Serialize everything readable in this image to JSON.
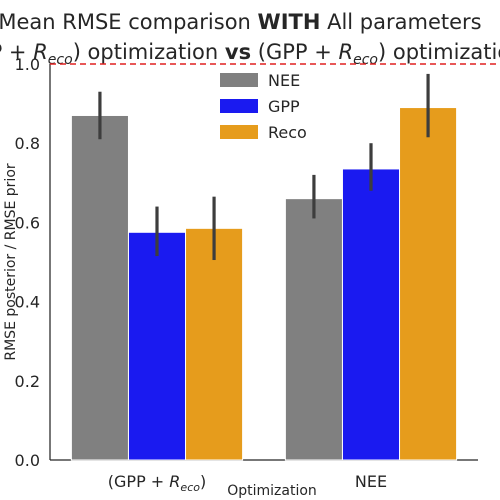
{
  "chart_data": {
    "type": "bar",
    "title_line1_pre": "Mean RMSE comparison ",
    "title_line1_bold": "WITH",
    "title_line1_post": " All parameters",
    "title_line2_pre": "(GPP + ",
    "title_line2_mid": ") optimization ",
    "title_line2_bold": "vs",
    "title_line2_post": " (GPP + ",
    "title_line2_end": ") optimization",
    "reco_symbol": "R",
    "reco_subscript": "eco",
    "xlabel": "Optimization",
    "ylabel": "RMSE posterior / RMSE prior",
    "categories": [
      {
        "pre": "(GPP + ",
        "sym": "R",
        "sub": "eco",
        "post": ")"
      },
      {
        "pre": "NEE",
        "sym": "",
        "sub": "",
        "post": ""
      }
    ],
    "series": [
      {
        "name": "NEE",
        "color": "#808080",
        "values": [
          0.87,
          0.66
        ],
        "ci": [
          [
            0.81,
            0.93
          ],
          [
            0.61,
            0.72
          ]
        ]
      },
      {
        "name": "GPP",
        "color": "#1a1af0",
        "values": [
          0.575,
          0.735
        ],
        "ci": [
          [
            0.515,
            0.64
          ],
          [
            0.68,
            0.8
          ]
        ]
      },
      {
        "name": "Reco",
        "color": "#e69c1c",
        "values": [
          0.585,
          0.89
        ],
        "ci": [
          [
            0.505,
            0.665
          ],
          [
            0.815,
            0.975
          ]
        ]
      }
    ],
    "ylim": [
      0,
      1.0
    ],
    "yticks": [
      {
        "value": 0.0,
        "label": "0.0"
      },
      {
        "value": 0.2,
        "label": "0.2"
      },
      {
        "value": 0.4,
        "label": "0.4"
      },
      {
        "value": 0.6,
        "label": "0.6"
      },
      {
        "value": 0.8,
        "label": "0.8"
      },
      {
        "value": 1.0,
        "label": "1.0"
      }
    ],
    "reference_line": {
      "value": 1.0,
      "color": "#e02020",
      "style": "dashed"
    },
    "legend_position": "top-center",
    "grid": false
  }
}
